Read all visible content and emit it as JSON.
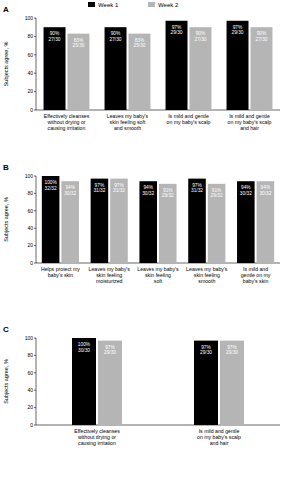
{
  "chart_data": [
    {
      "type": "bar",
      "title": "A",
      "ylabel": "Subjects agree, %",
      "categories": [
        "Effectively cleanses without drying or causing irritation",
        "Leaves my baby's skin feeling soft and smooth",
        "Is mild and gentle on my baby's scalp",
        "Is mild and gentle on my baby's scalp and hair"
      ],
      "series": [
        {
          "name": "Week 1",
          "color": "#000000",
          "values": [
            90,
            90,
            97,
            97
          ],
          "value_labels": [
            "90%\n27/30",
            "90%\n27/30",
            "97%\n29/30",
            "97%\n29/30"
          ]
        },
        {
          "name": "Week 2",
          "color": "#b5b5b5",
          "values": [
            83,
            83,
            90,
            90
          ],
          "value_labels": [
            "83%\n25/30",
            "83%\n25/30",
            "90%\n27/30",
            "90%\n27/30"
          ]
        }
      ],
      "ylim": [
        0,
        100
      ],
      "yticks": [
        0,
        20,
        40,
        60,
        80,
        100
      ],
      "legend": "top",
      "data_labels": true
    },
    {
      "type": "bar",
      "title": "B",
      "ylabel": "Subjects agree, %",
      "categories": [
        "Helps protect my baby's skin",
        "Leaves my baby's skin feeling moisturized",
        "Leaves my baby's skin feeling soft",
        "Leaves my baby's skin feeling smooth",
        "Is mild and gentle on my baby's skin"
      ],
      "series": [
        {
          "name": "Week 1",
          "color": "#000000",
          "values": [
            100,
            97,
            94,
            97,
            94
          ],
          "value_labels": [
            "100%\n32/32",
            "97%\n31/32",
            "94%\n30/32",
            "97%\n31/32",
            "94%\n30/32"
          ]
        },
        {
          "name": "Week 2",
          "color": "#b5b5b5",
          "values": [
            94,
            97,
            91,
            91,
            94
          ],
          "value_labels": [
            "94%\n30/32",
            "97%\n31/32",
            "91%\n29/32",
            "91%\n29/32",
            "94%\n30/32"
          ]
        }
      ],
      "ylim": [
        0,
        100
      ],
      "yticks": [
        0,
        20,
        40,
        60,
        80,
        100
      ],
      "data_labels": true
    },
    {
      "type": "bar",
      "title": "C",
      "ylabel": "Subjects agree, %",
      "categories": [
        "Effectively cleanses without drying or causing irritation",
        "Is mild and gentle on my baby's scalp and hair"
      ],
      "series": [
        {
          "name": "Week 1",
          "color": "#000000",
          "values": [
            100,
            97
          ],
          "value_labels": [
            "100%\n30/30",
            "97%\n29/30"
          ]
        },
        {
          "name": "Week 2",
          "color": "#b5b5b5",
          "values": [
            97,
            97
          ],
          "value_labels": [
            "97%\n29/30",
            "97%\n29/30"
          ]
        }
      ],
      "ylim": [
        0,
        100
      ],
      "yticks": [
        0,
        20,
        40,
        60,
        80,
        100
      ],
      "data_labels": true
    }
  ]
}
